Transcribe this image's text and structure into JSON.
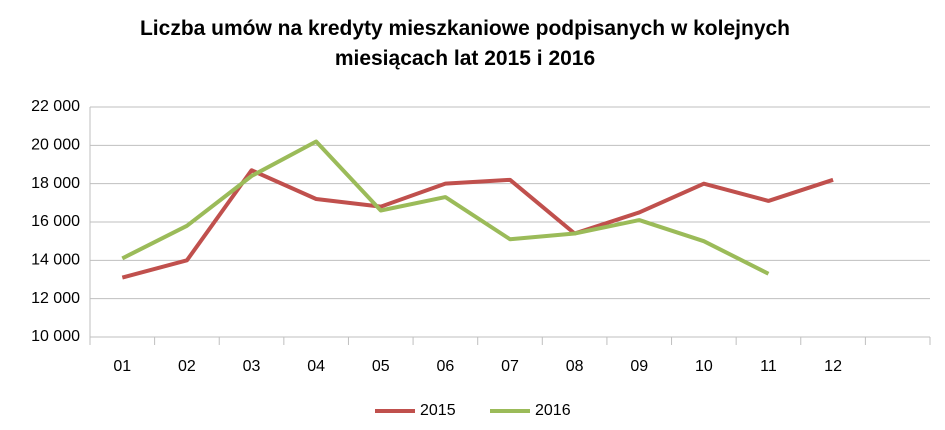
{
  "chart_data": {
    "type": "line",
    "title": "Liczba umów na kredyty mieszkaniowe podpisanych w kolejnych miesiącach lat 2015 i 2016",
    "categories": [
      "01",
      "02",
      "03",
      "04",
      "05",
      "06",
      "07",
      "08",
      "09",
      "10",
      "11",
      "12",
      null
    ],
    "series": [
      {
        "name": "2015",
        "color": "#c0504d",
        "values": [
          13100,
          14000,
          18700,
          17200,
          16800,
          18000,
          18200,
          15400,
          16500,
          18000,
          17100,
          18200,
          null
        ]
      },
      {
        "name": "2016",
        "color": "#9bbb59",
        "values": [
          14100,
          15800,
          18400,
          20200,
          16600,
          17300,
          15100,
          15400,
          16100,
          15000,
          13300,
          null,
          null
        ]
      }
    ],
    "ylim": [
      10000,
      22000
    ],
    "yticks": [
      {
        "value": 10000,
        "label": "10 000"
      },
      {
        "value": 12000,
        "label": "12 000"
      },
      {
        "value": 14000,
        "label": "14 000"
      },
      {
        "value": 16000,
        "label": "16 000"
      },
      {
        "value": 18000,
        "label": "18 000"
      },
      {
        "value": 20000,
        "label": "20 000"
      },
      {
        "value": 22000,
        "label": "22 000"
      }
    ],
    "grid": true,
    "legend": "bottom"
  }
}
